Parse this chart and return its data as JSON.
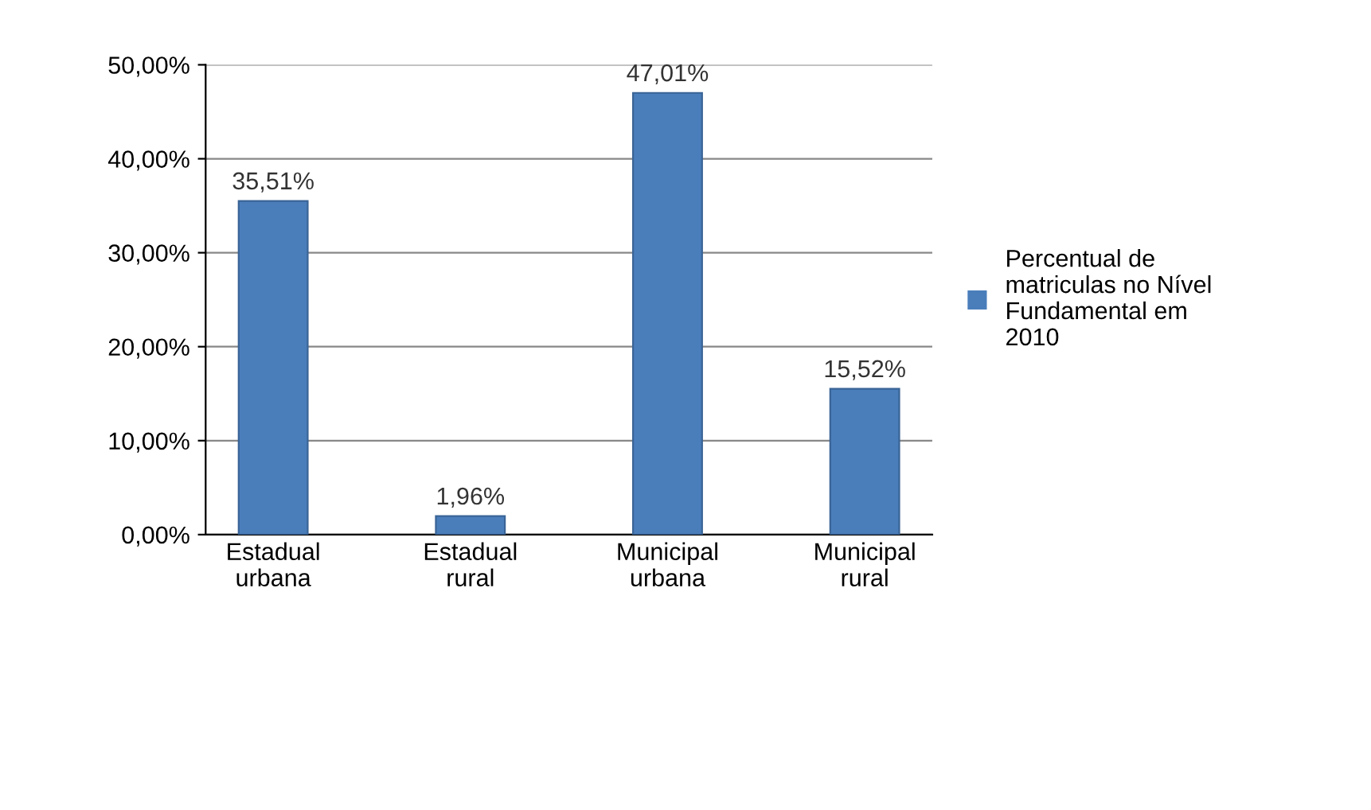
{
  "chart_data": {
    "type": "bar",
    "categories": [
      "Estadual urbana",
      "Estadual rural",
      "Municipal urbana",
      "Municipal rural"
    ],
    "series": [
      {
        "name": "Percentual de\nmatriculas no Nível\nFundamental em\n2010",
        "color": "#4a7ebb",
        "values": [
          35.51,
          1.96,
          47.01,
          15.52
        ],
        "value_labels": [
          "35,51%",
          "1,96%",
          "47,01%",
          "15,52%"
        ]
      }
    ],
    "ylim": [
      0,
      50
    ],
    "yticks": [
      {
        "value": 0,
        "label": "0,00%"
      },
      {
        "value": 10,
        "label": "10,00%"
      },
      {
        "value": 20,
        "label": "20,00%"
      },
      {
        "value": 30,
        "label": "30,00%"
      },
      {
        "value": 40,
        "label": "40,00%"
      },
      {
        "value": 50,
        "label": "50,00%"
      }
    ],
    "grid": "y",
    "legend": "right"
  }
}
